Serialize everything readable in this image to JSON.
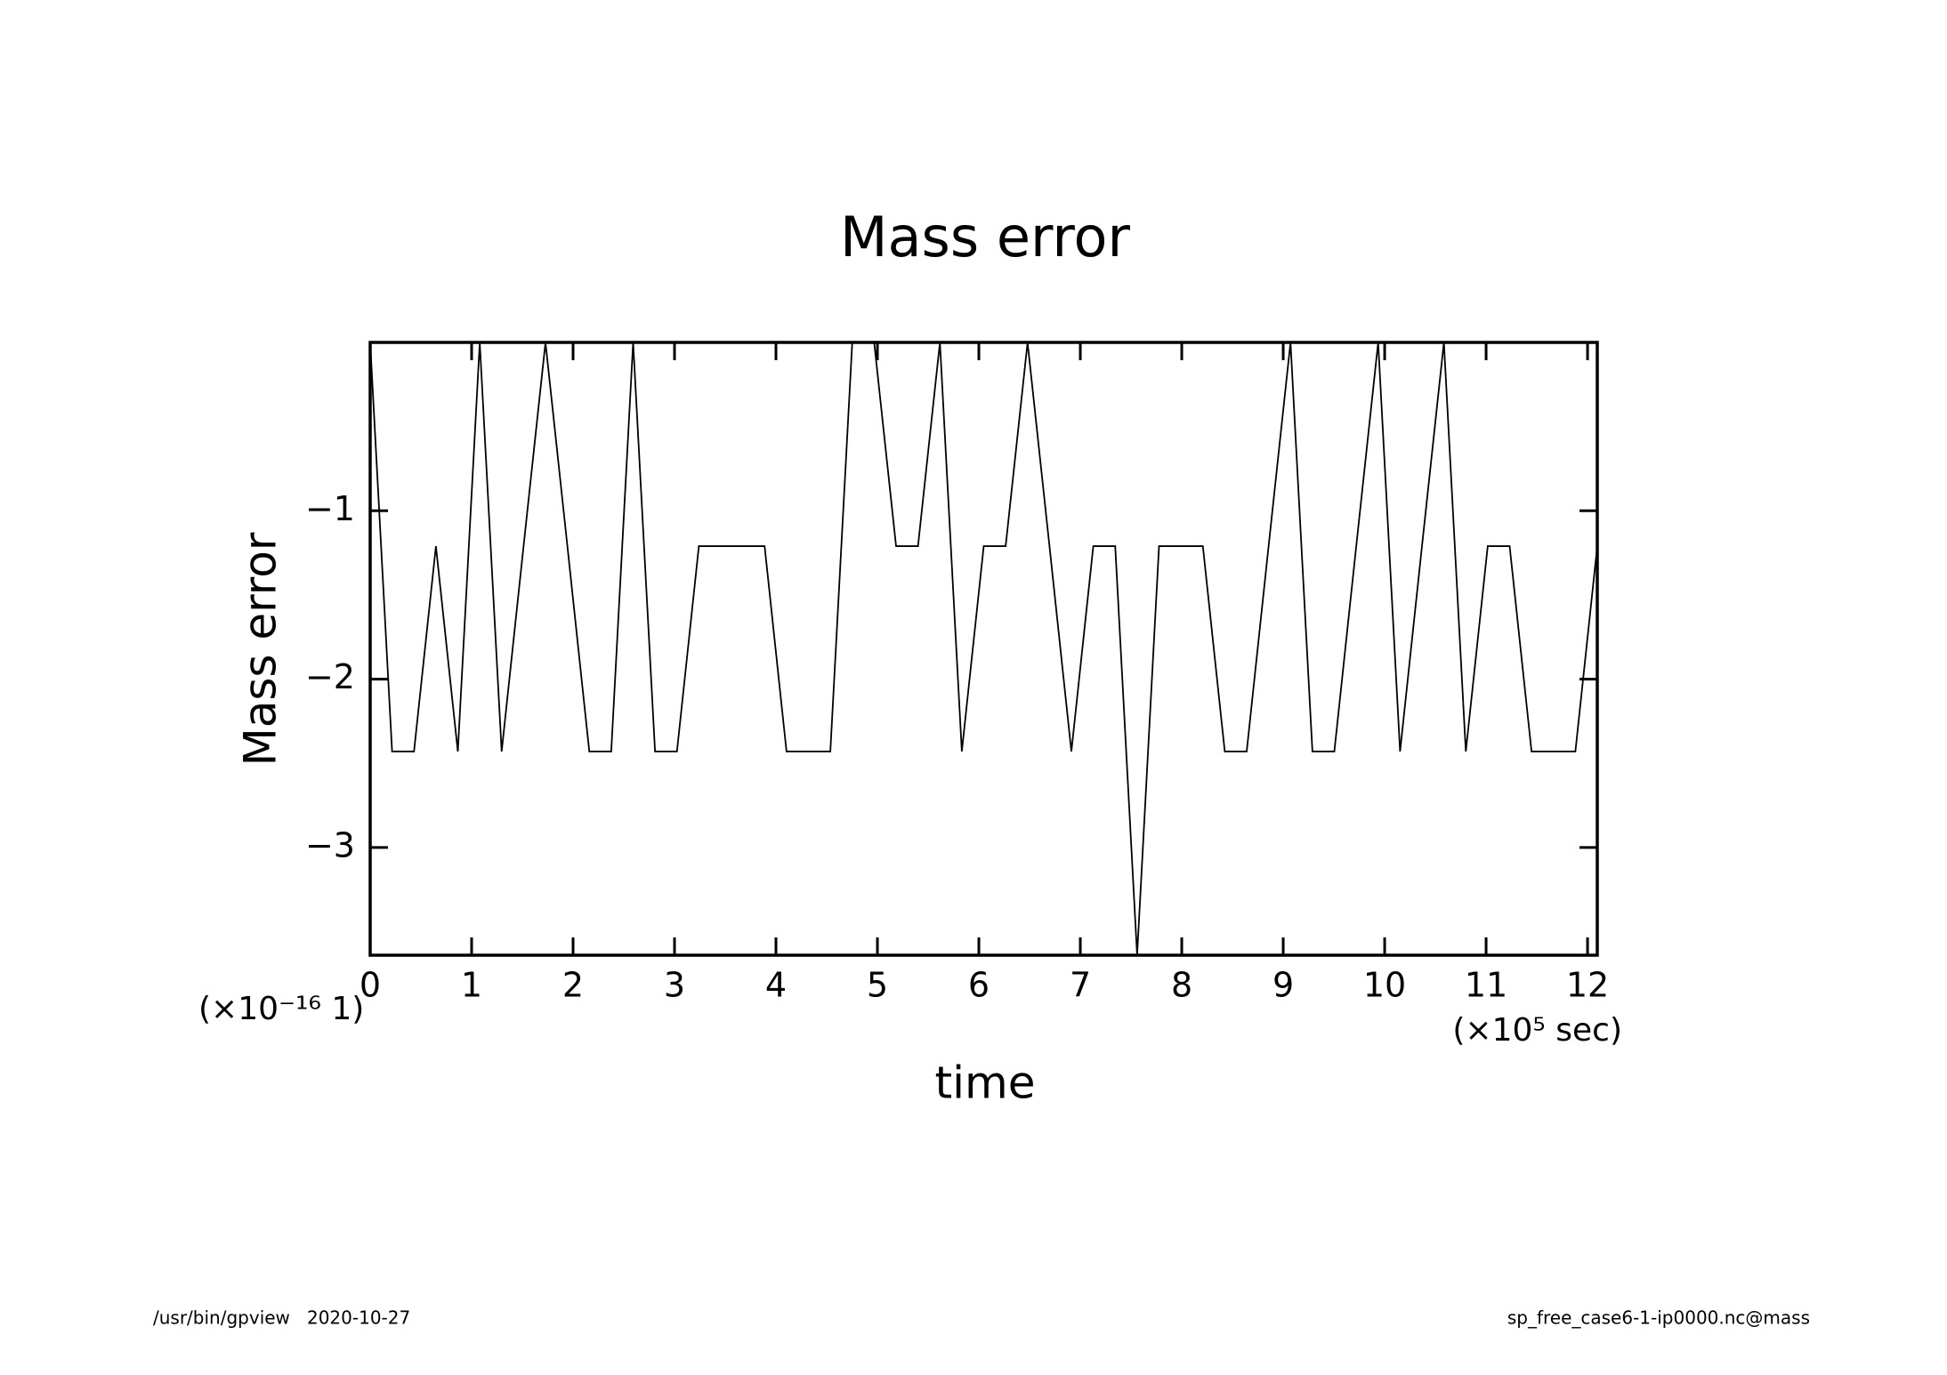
{
  "chart_data": {
    "type": "line",
    "title": "Mass error",
    "x_label": "time",
    "y_label": "Mass error",
    "x_unit": "(×10⁵ sec)",
    "y_unit": "(×10⁻¹⁶ 1)",
    "x": [
      0,
      0.216,
      0.432,
      0.648,
      0.864,
      1.08,
      1.296,
      1.512,
      1.728,
      1.944,
      2.16,
      2.376,
      2.592,
      2.808,
      3.024,
      3.24,
      3.456,
      3.672,
      3.888,
      4.104,
      4.32,
      4.536,
      4.752,
      4.968,
      5.184,
      5.4,
      5.616,
      5.832,
      6.048,
      6.264,
      6.48,
      6.696,
      6.912,
      7.128,
      7.344,
      7.56,
      7.776,
      7.992,
      8.208,
      8.424,
      8.64,
      8.856,
      9.072,
      9.288,
      9.504,
      9.72,
      9.936,
      10.152,
      10.368,
      10.584,
      10.8,
      11.016,
      11.232,
      11.448,
      11.664,
      11.88,
      12.096
    ],
    "series": [
      {
        "color": "#000000",
        "values": [
          0,
          -2.43,
          -2.43,
          -1.21,
          -2.43,
          0,
          -2.43,
          -1.21,
          0,
          -1.21,
          -2.43,
          -2.43,
          0,
          -2.43,
          -2.43,
          -1.21,
          -1.21,
          -1.21,
          -1.21,
          -2.43,
          -2.43,
          -2.43,
          0,
          0,
          -1.21,
          -1.21,
          0,
          -2.43,
          -1.21,
          -1.21,
          0,
          -1.21,
          -2.43,
          -1.21,
          -1.21,
          -3.64,
          -1.21,
          -1.21,
          -1.21,
          -2.43,
          -2.43,
          -1.21,
          0,
          -2.43,
          -2.43,
          -1.21,
          0,
          -2.43,
          -1.21,
          0,
          -2.43,
          -1.21,
          -1.21,
          -2.43,
          -2.43,
          -2.43,
          -1.21
        ]
      }
    ],
    "xlim": [
      0,
      12.096
    ],
    "ylim": [
      -3.64,
      0
    ],
    "xticks": [
      0,
      1,
      2,
      3,
      4,
      5,
      6,
      7,
      8,
      9,
      10,
      11,
      12
    ],
    "yticks": [
      {
        "value": -1,
        "label": "−1"
      },
      {
        "value": -2,
        "label": "−2"
      },
      {
        "value": -3,
        "label": "−3"
      }
    ]
  },
  "footer": {
    "left": "/usr/bin/gpview   2020-10-27",
    "right": "sp_free_case6-1-ip0000.nc@mass"
  }
}
